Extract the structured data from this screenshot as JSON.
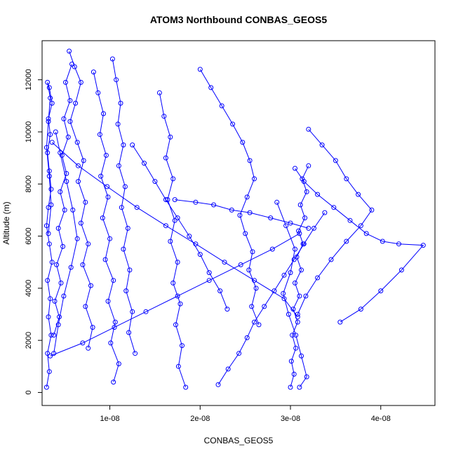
{
  "chart_data": {
    "type": "line",
    "title": "ATOM3 Northbound CONBAS_GEOS5",
    "xlabel": "CONBAS_GEOS5",
    "ylabel": "Altitude (m)",
    "xlim": [
      2.5e-09,
      4.6e-08
    ],
    "ylim": [
      -500,
      13500
    ],
    "x_ticks": [
      1e-08,
      2e-08,
      3e-08,
      4e-08
    ],
    "x_tick_labels": [
      "1e-08",
      "2e-08",
      "3e-08",
      "4e-08"
    ],
    "y_ticks": [
      0,
      2000,
      4000,
      6000,
      8000,
      10000,
      12000
    ],
    "y_tick_labels": [
      "0",
      "2000",
      "4000",
      "6000",
      "8000",
      "10000",
      "12000"
    ],
    "series_color": "#0000ff",
    "marker": "open-circle",
    "grid": false,
    "series": [
      {
        "x": [
          3e-09,
          3.3e-09,
          3.1e-09,
          3.5e-09,
          3.2e-09,
          3.4e-09,
          3.1e-09,
          3.6e-09,
          3.3e-09,
          3e-09,
          3.2e-09,
          3.5e-09,
          3.3e-09,
          3.1e-09,
          3.4e-09,
          3.2e-09,
          3.6e-09,
          3.3e-09,
          3.1e-09,
          3.4e-09,
          3.2e-09,
          3e-09,
          3.3e-09,
          3.5e-09,
          3.2e-09
        ],
        "y": [
          200,
          800,
          1500,
          2200,
          2900,
          3600,
          4300,
          5000,
          5700,
          6400,
          7100,
          7800,
          8500,
          9200,
          9900,
          10500,
          11100,
          11700,
          11900,
          11300,
          10400,
          9400,
          8300,
          7200,
          6100
        ]
      },
      {
        "x": [
          3.8e-09,
          4.4e-09,
          3.9e-09,
          4.6e-09,
          4.1e-09,
          4.8e-09,
          4.3e-09,
          5e-09,
          4.5e-09,
          5.2e-09,
          4.7e-09,
          5.4e-09,
          4.9e-09,
          5.6e-09,
          5.1e-09,
          5.8e-09
        ],
        "y": [
          2200,
          2900,
          3500,
          4200,
          4900,
          5600,
          6300,
          7000,
          7700,
          8400,
          9100,
          9800,
          10500,
          11200,
          11900,
          12600
        ]
      },
      {
        "x": [
          5.5e-09,
          6.1e-09,
          6.8e-09,
          6.2e-09,
          5.6e-09,
          6.4e-09,
          7.1e-09,
          6.5e-09,
          7.3e-09,
          6.8e-09,
          7.6e-09,
          7e-09,
          7.9e-09,
          7.3e-09,
          8.1e-09,
          7.6e-09
        ],
        "y": [
          13100,
          12500,
          11900,
          11100,
          10400,
          9600,
          8900,
          8100,
          7300,
          6500,
          5700,
          4900,
          4100,
          3300,
          2500,
          1700
        ]
      },
      {
        "x": [
          8.2e-09,
          8.7e-09,
          9.3e-09,
          8.9e-09,
          9.6e-09,
          9e-09,
          9.8e-09,
          9.2e-09,
          1e-08,
          9.5e-09,
          1.04e-08,
          9.8e-09,
          1.06e-08,
          1.01e-08,
          1.1e-08,
          1.04e-08
        ],
        "y": [
          12300,
          11500,
          10700,
          9900,
          9100,
          8300,
          7500,
          6700,
          5900,
          5100,
          4300,
          3500,
          2700,
          1900,
          1100,
          400
        ]
      },
      {
        "x": [
          1.03e-08,
          1.07e-08,
          1.12e-08,
          1.09e-08,
          1.15e-08,
          1.1e-08,
          1.17e-08,
          1.13e-08,
          1.2e-08,
          1.15e-08,
          1.22e-08,
          1.18e-08,
          1.25e-08,
          1.21e-08,
          1.28e-08
        ],
        "y": [
          12800,
          12000,
          11100,
          10300,
          9500,
          8700,
          7900,
          7100,
          6300,
          5500,
          4700,
          3900,
          3100,
          2300,
          1500
        ]
      },
      {
        "x": [
          1.55e-08,
          1.6e-08,
          1.67e-08,
          1.62e-08,
          1.7e-08,
          1.64e-08,
          1.72e-08,
          1.67e-08,
          1.75e-08,
          1.7e-08,
          1.78e-08,
          1.73e-08,
          1.8e-08,
          1.76e-08,
          1.84e-08
        ],
        "y": [
          11500,
          10600,
          9800,
          9000,
          8200,
          7400,
          6600,
          5800,
          5000,
          4200,
          3400,
          2600,
          1800,
          1000,
          200
        ]
      },
      {
        "x": [
          2e-08,
          2.12e-08,
          2.24e-08,
          2.36e-08,
          2.47e-08,
          2.55e-08,
          2.6e-08,
          2.52e-08,
          2.44e-08,
          2.5e-08,
          2.58e-08,
          2.54e-08,
          2.62e-08,
          2.57e-08,
          2.65e-08
        ],
        "y": [
          12400,
          11700,
          11000,
          10300,
          9600,
          8900,
          8200,
          7500,
          6800,
          6100,
          5400,
          4700,
          4000,
          3300,
          2600
        ]
      },
      {
        "x": [
          2.2e-08,
          2.31e-08,
          2.43e-08,
          2.52e-08,
          2.6e-08,
          2.71e-08,
          2.82e-08,
          2.93e-08,
          3.04e-08,
          3.15e-08,
          3.26e-08,
          3.38e-08
        ],
        "y": [
          300,
          900,
          1500,
          2100,
          2700,
          3300,
          3900,
          4500,
          5100,
          5700,
          6300,
          6900
        ]
      },
      {
        "x": [
          3e-08,
          3.04e-08,
          3.01e-08,
          3.06e-08,
          3.02e-08,
          3.08e-08,
          3.03e-08,
          3.1e-08,
          3.05e-08,
          3.12e-08,
          3.07e-08,
          3.14e-08,
          3.09e-08,
          3.16e-08,
          3.11e-08,
          3.18e-08,
          3.13e-08,
          3.2e-08
        ],
        "y": [
          200,
          700,
          1200,
          1700,
          2200,
          2700,
          3200,
          3700,
          4200,
          4700,
          5200,
          5700,
          6200,
          6700,
          7200,
          7700,
          8200,
          8700
        ]
      },
      {
        "x": [
          3.05e-08,
          3.15e-08,
          3.3e-08,
          3.48e-08,
          3.66e-08,
          3.84e-08,
          4.02e-08,
          4.2e-08,
          4.47e-08,
          4.23e-08,
          4e-08,
          3.78e-08,
          3.55e-08
        ],
        "y": [
          8600,
          8100,
          7600,
          7100,
          6600,
          6100,
          5800,
          5700,
          5650,
          4700,
          3900,
          3200,
          2700
        ]
      },
      {
        "x": [
          3.2e-08,
          3.35e-08,
          3.5e-08,
          3.62e-08,
          3.75e-08,
          3.9e-08,
          3.78e-08,
          3.62e-08,
          3.45e-08,
          3.3e-08,
          3.17e-08,
          3.08e-08
        ],
        "y": [
          10100,
          9500,
          8900,
          8200,
          7600,
          7000,
          6400,
          5800,
          5100,
          4400,
          3700,
          3000
        ]
      },
      {
        "x": [
          3.6e-09,
          6.5e-09,
          9.7e-09,
          1.3e-08,
          1.62e-08,
          1.95e-08,
          2.27e-08,
          2.6e-08,
          2.93e-08,
          3.08e-08
        ],
        "y": [
          9600,
          8700,
          7900,
          7100,
          6400,
          5700,
          5000,
          4300,
          3600,
          2900
        ]
      },
      {
        "x": [
          3.4e-09,
          7e-09,
          1.05e-08,
          1.4e-08,
          1.75e-08,
          2.1e-08,
          2.45e-08,
          2.8e-08,
          3.1e-08
        ],
        "y": [
          1400,
          1900,
          2500,
          3100,
          3700,
          4300,
          4900,
          5500,
          6100
        ]
      },
      {
        "x": [
          1.72e-08,
          1.95e-08,
          2.15e-08,
          2.35e-08,
          2.55e-08,
          2.78e-08,
          3e-08,
          3.2e-08
        ],
        "y": [
          7400,
          7300,
          7200,
          7000,
          6900,
          6700,
          6500,
          6300
        ]
      },
      {
        "x": [
          1.25e-08,
          1.38e-08,
          1.5e-08,
          1.62e-08,
          1.75e-08,
          1.88e-08,
          2e-08,
          2.1e-08,
          2.22e-08,
          2.3e-08
        ],
        "y": [
          9500,
          8800,
          8100,
          7400,
          6700,
          6000,
          5300,
          4600,
          3900,
          3200
        ]
      },
      {
        "x": [
          4e-09,
          4.5e-09,
          5.2e-09,
          5.9e-09,
          6.4e-09,
          5.7e-09,
          4.9e-09,
          4.3e-09,
          3.8e-09
        ],
        "y": [
          10000,
          9200,
          8100,
          7000,
          5900,
          4800,
          3700,
          2600,
          1500
        ]
      },
      {
        "x": [
          2.85e-08,
          2.95e-08,
          3.05e-08,
          3e-08,
          2.92e-08,
          2.98e-08,
          3.06e-08,
          3.12e-08,
          3.18e-08,
          3.1e-08
        ],
        "y": [
          7300,
          6400,
          5500,
          4600,
          3800,
          3000,
          2200,
          1400,
          600,
          200
        ]
      }
    ]
  }
}
